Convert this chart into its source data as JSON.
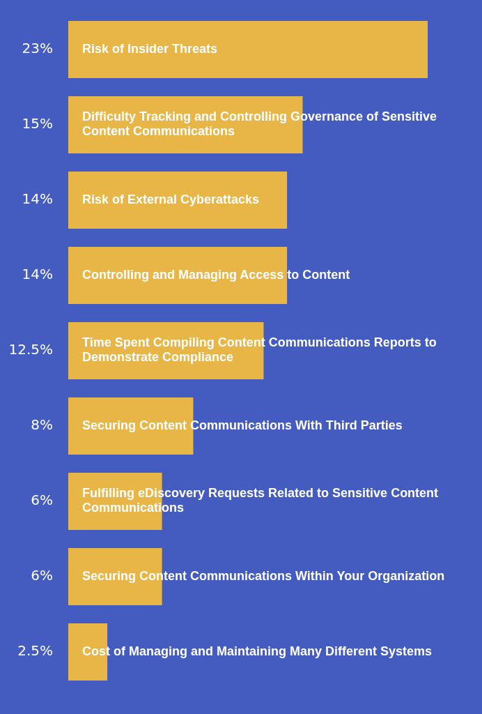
{
  "chart_data": {
    "type": "bar",
    "orientation": "horizontal",
    "categories": [
      "Risk of Insider Threats",
      "Difficulty Tracking and Controlling Governance of Sensitive Content Communications",
      "Risk of External Cyberattacks",
      "Controlling and Managing Access to Content",
      "Time Spent Compiling Content Communications Reports to Demonstrate Compliance",
      "Securing Content Communications With Third Parties",
      "Fulfilling eDiscovery Requests Related to Sensitive Content Communications",
      "Securing Content Communications Within Your Organization",
      "Cost of Managing and Maintaining Many Different Systems"
    ],
    "values": [
      23,
      15,
      14,
      14,
      12.5,
      8,
      6,
      6,
      2.5
    ],
    "value_labels": [
      "23%",
      "15%",
      "14%",
      "14%",
      "12.5%",
      "8%",
      "6%",
      "6%",
      "2.5%"
    ],
    "color": "#e8b547",
    "legend": false
  }
}
